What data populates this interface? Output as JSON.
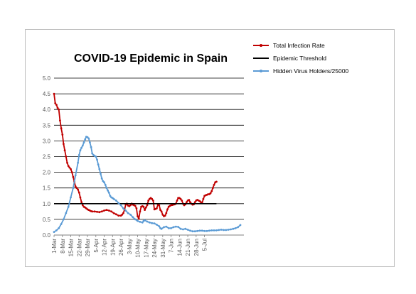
{
  "chart_data": {
    "type": "line",
    "title": "COVID-19 Epidemic in Spain",
    "xlabel": "",
    "ylabel": "",
    "ylim": [
      0,
      5
    ],
    "y_ticks": [
      "0.0",
      "0.5",
      "1.0",
      "1.5",
      "2.0",
      "2.5",
      "3.0",
      "3.5",
      "4.0",
      "4.5",
      "5.0"
    ],
    "x_start": "1-Mar",
    "x_tick_labels": [
      "1-Mar",
      "8-Mar",
      "15-Mar",
      "22-Mar",
      "29-Mar",
      "5-Apr",
      "12-Apr",
      "19-Apr",
      "26-Apr",
      "3-May",
      "10-May",
      "17-May",
      "24-May",
      "31-May",
      "7-Jun",
      "14-Jun",
      "21-Jun",
      "28-Jun",
      "5-Jul"
    ],
    "grid": true,
    "legend_position": "top-right",
    "series": [
      {
        "name": "Total Infection Rate",
        "color": "#c00000",
        "points": [
          [
            0,
            4.5
          ],
          [
            1,
            4.2
          ],
          [
            2,
            4.15
          ],
          [
            3,
            4.05
          ],
          [
            4,
            4.0
          ],
          [
            5,
            3.65
          ],
          [
            6,
            3.4
          ],
          [
            7,
            3.2
          ],
          [
            8,
            2.9
          ],
          [
            9,
            2.7
          ],
          [
            10,
            2.5
          ],
          [
            11,
            2.3
          ],
          [
            12,
            2.2
          ],
          [
            13,
            2.15
          ],
          [
            14,
            2.1
          ],
          [
            15,
            2.0
          ],
          [
            16,
            1.85
          ],
          [
            17,
            1.7
          ],
          [
            18,
            1.55
          ],
          [
            19,
            1.5
          ],
          [
            20,
            1.45
          ],
          [
            21,
            1.35
          ],
          [
            22,
            1.2
          ],
          [
            23,
            1.05
          ],
          [
            24,
            0.95
          ],
          [
            25,
            0.9
          ],
          [
            26,
            0.88
          ],
          [
            27,
            0.85
          ],
          [
            28,
            0.82
          ],
          [
            29,
            0.8
          ],
          [
            30,
            0.78
          ],
          [
            31,
            0.76
          ],
          [
            32,
            0.75
          ],
          [
            34,
            0.75
          ],
          [
            36,
            0.74
          ],
          [
            38,
            0.73
          ],
          [
            40,
            0.75
          ],
          [
            42,
            0.78
          ],
          [
            44,
            0.8
          ],
          [
            46,
            0.78
          ],
          [
            48,
            0.75
          ],
          [
            50,
            0.7
          ],
          [
            52,
            0.66
          ],
          [
            54,
            0.62
          ],
          [
            56,
            0.62
          ],
          [
            57,
            0.65
          ],
          [
            58,
            0.7
          ],
          [
            59,
            0.8
          ],
          [
            60,
            0.97
          ],
          [
            61,
            1.0
          ],
          [
            62,
            0.94
          ],
          [
            63,
            0.92
          ],
          [
            64,
            0.95
          ],
          [
            65,
            1.0
          ],
          [
            66,
            0.97
          ],
          [
            67,
            0.95
          ],
          [
            68,
            0.93
          ],
          [
            69,
            0.85
          ],
          [
            70,
            0.6
          ],
          [
            71,
            0.52
          ],
          [
            72,
            0.75
          ],
          [
            73,
            0.9
          ],
          [
            74,
            0.92
          ],
          [
            75,
            0.9
          ],
          [
            76,
            0.8
          ],
          [
            77,
            0.88
          ],
          [
            78,
            0.95
          ],
          [
            79,
            1.1
          ],
          [
            80,
            1.15
          ],
          [
            81,
            1.18
          ],
          [
            82,
            1.15
          ],
          [
            83,
            1.1
          ],
          [
            84,
            0.82
          ],
          [
            85,
            0.83
          ],
          [
            86,
            0.85
          ],
          [
            87,
            0.97
          ],
          [
            88,
            0.95
          ],
          [
            89,
            0.8
          ],
          [
            90,
            0.75
          ],
          [
            91,
            0.65
          ],
          [
            92,
            0.6
          ],
          [
            93,
            0.62
          ],
          [
            94,
            0.7
          ],
          [
            95,
            0.82
          ],
          [
            96,
            0.9
          ],
          [
            97,
            0.93
          ],
          [
            98,
            0.95
          ],
          [
            99,
            0.96
          ],
          [
            100,
            0.97
          ],
          [
            101,
            0.98
          ],
          [
            102,
            1.0
          ],
          [
            103,
            1.1
          ],
          [
            104,
            1.18
          ],
          [
            105,
            1.18
          ],
          [
            106,
            1.15
          ],
          [
            107,
            1.1
          ],
          [
            108,
            1.0
          ],
          [
            109,
            0.95
          ],
          [
            110,
            0.98
          ],
          [
            111,
            1.05
          ],
          [
            112,
            1.1
          ],
          [
            113,
            1.12
          ],
          [
            114,
            1.05
          ],
          [
            115,
            1.0
          ],
          [
            116,
            0.97
          ],
          [
            117,
            0.98
          ],
          [
            118,
            1.05
          ],
          [
            119,
            1.1
          ],
          [
            120,
            1.12
          ],
          [
            121,
            1.1
          ],
          [
            122,
            1.08
          ],
          [
            123,
            1.05
          ],
          [
            124,
            1.02
          ],
          [
            125,
            1.15
          ],
          [
            126,
            1.25
          ],
          [
            127,
            1.27
          ],
          [
            128,
            1.28
          ],
          [
            129,
            1.3
          ],
          [
            130,
            1.3
          ],
          [
            131,
            1.33
          ],
          [
            132,
            1.4
          ],
          [
            133,
            1.5
          ],
          [
            134,
            1.6
          ],
          [
            135,
            1.68
          ],
          [
            136,
            1.7
          ]
        ]
      },
      {
        "name": "Epidemic Threshold",
        "color": "#000000",
        "points": [
          [
            0,
            1.0
          ],
          [
            136,
            1.0
          ]
        ]
      },
      {
        "name": "Hidden Virus Holders/25000",
        "color": "#5b9bd5",
        "points": [
          [
            0,
            0.1
          ],
          [
            2,
            0.15
          ],
          [
            4,
            0.22
          ],
          [
            6,
            0.35
          ],
          [
            8,
            0.5
          ],
          [
            10,
            0.7
          ],
          [
            12,
            0.9
          ],
          [
            14,
            1.2
          ],
          [
            16,
            1.5
          ],
          [
            18,
            1.9
          ],
          [
            20,
            2.3
          ],
          [
            21,
            2.55
          ],
          [
            22,
            2.7
          ],
          [
            23,
            2.78
          ],
          [
            24,
            2.85
          ],
          [
            25,
            2.95
          ],
          [
            26,
            3.05
          ],
          [
            27,
            3.13
          ],
          [
            28,
            3.12
          ],
          [
            29,
            3.08
          ],
          [
            30,
            2.95
          ],
          [
            31,
            2.8
          ],
          [
            32,
            2.6
          ],
          [
            33,
            2.55
          ],
          [
            34,
            2.52
          ],
          [
            35,
            2.5
          ],
          [
            36,
            2.4
          ],
          [
            37,
            2.25
          ],
          [
            38,
            2.1
          ],
          [
            39,
            1.95
          ],
          [
            40,
            1.8
          ],
          [
            41,
            1.72
          ],
          [
            42,
            1.68
          ],
          [
            43,
            1.6
          ],
          [
            44,
            1.5
          ],
          [
            45,
            1.42
          ],
          [
            46,
            1.35
          ],
          [
            47,
            1.25
          ],
          [
            48,
            1.2
          ],
          [
            49,
            1.18
          ],
          [
            50,
            1.15
          ],
          [
            52,
            1.1
          ],
          [
            54,
            1.02
          ],
          [
            56,
            0.95
          ],
          [
            58,
            0.85
          ],
          [
            60,
            0.78
          ],
          [
            62,
            0.7
          ],
          [
            64,
            0.65
          ],
          [
            66,
            0.57
          ],
          [
            68,
            0.5
          ],
          [
            70,
            0.45
          ],
          [
            72,
            0.42
          ],
          [
            74,
            0.4
          ],
          [
            75,
            0.45
          ],
          [
            76,
            0.47
          ],
          [
            78,
            0.43
          ],
          [
            80,
            0.4
          ],
          [
            82,
            0.38
          ],
          [
            84,
            0.37
          ],
          [
            86,
            0.33
          ],
          [
            88,
            0.28
          ],
          [
            89,
            0.22
          ],
          [
            90,
            0.2
          ],
          [
            92,
            0.25
          ],
          [
            94,
            0.27
          ],
          [
            96,
            0.22
          ],
          [
            98,
            0.22
          ],
          [
            100,
            0.25
          ],
          [
            102,
            0.27
          ],
          [
            104,
            0.26
          ],
          [
            106,
            0.2
          ],
          [
            108,
            0.18
          ],
          [
            110,
            0.2
          ],
          [
            112,
            0.17
          ],
          [
            114,
            0.14
          ],
          [
            116,
            0.12
          ],
          [
            118,
            0.12
          ],
          [
            120,
            0.13
          ],
          [
            122,
            0.14
          ],
          [
            124,
            0.14
          ],
          [
            126,
            0.13
          ],
          [
            128,
            0.13
          ],
          [
            130,
            0.14
          ],
          [
            132,
            0.15
          ],
          [
            134,
            0.15
          ],
          [
            136,
            0.15
          ],
          [
            138,
            0.16
          ],
          [
            140,
            0.17
          ],
          [
            142,
            0.16
          ],
          [
            144,
            0.16
          ],
          [
            146,
            0.17
          ],
          [
            148,
            0.18
          ],
          [
            150,
            0.2
          ],
          [
            152,
            0.22
          ],
          [
            154,
            0.25
          ],
          [
            156,
            0.32
          ]
        ]
      }
    ]
  }
}
